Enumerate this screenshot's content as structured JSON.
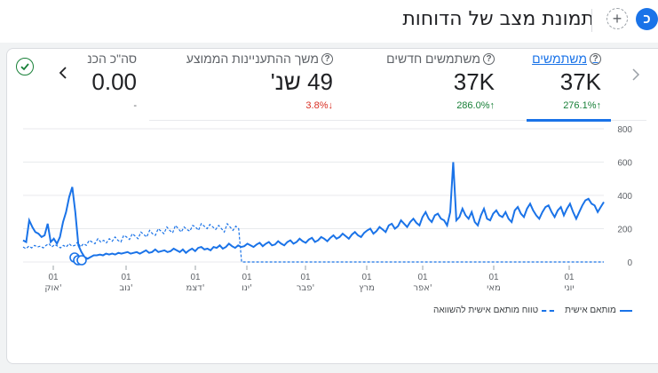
{
  "header": {
    "title": "תמונת מצב של הדוחות",
    "add_label": "+",
    "app_badge": "כ"
  },
  "metrics": [
    {
      "label": "משתמשים",
      "value": "37K",
      "change": "276.1%",
      "direction": "up",
      "active": true
    },
    {
      "label": "משתמשים חדשים",
      "value": "37K",
      "change": "286.0%",
      "direction": "up",
      "active": false
    },
    {
      "label": "משך ההתעניינות הממוצע",
      "value": "49 שנ'",
      "change": "3.8%",
      "direction": "down",
      "active": false
    },
    {
      "label": "סה\"כ הכנ",
      "value": "0.00",
      "change": "-",
      "direction": "none",
      "active": false
    }
  ],
  "nav": {
    "prev": "‹",
    "next": "›"
  },
  "legend": {
    "primary": "מותאם אישית",
    "comparison": "טווח מותאם אישית להשוואה"
  },
  "colors": {
    "accent": "#1a73e8",
    "positive": "#188038",
    "negative": "#d93025"
  },
  "chart_data": {
    "type": "line",
    "y_ticks": [
      "800",
      "600",
      "400",
      "200",
      "0"
    ],
    "ylim": [
      0,
      800
    ],
    "x_ticks": [
      {
        "day": "01",
        "month": "אוק'"
      },
      {
        "day": "01",
        "month": "נוב'"
      },
      {
        "day": "01",
        "month": "דצמ'"
      },
      {
        "day": "01",
        "month": "ינו'"
      },
      {
        "day": "01",
        "month": "פבר'"
      },
      {
        "day": "01",
        "month": "מרץ"
      },
      {
        "day": "01",
        "month": "אפר'"
      },
      {
        "day": "01",
        "month": "מאי"
      },
      {
        "day": "01",
        "month": "יוני"
      }
    ],
    "grid": true,
    "legend_position": "bottom",
    "series": [
      {
        "name": "מותאם אישית",
        "style": "solid",
        "values": [
          130,
          120,
          250,
          210,
          180,
          170,
          150,
          160,
          230,
          120,
          140,
          110,
          150,
          240,
          300,
          390,
          450,
          300,
          100,
          60,
          30,
          20,
          30,
          40,
          40,
          45,
          40,
          50,
          45,
          50,
          45,
          55,
          50,
          55,
          60,
          50,
          55,
          60,
          50,
          60,
          70,
          55,
          60,
          75,
          60,
          65,
          70,
          60,
          65,
          80,
          70,
          60,
          75,
          55,
          70,
          80,
          65,
          85,
          90,
          75,
          80,
          70,
          90,
          85,
          100,
          80,
          90,
          110,
          95,
          85,
          100,
          90,
          95,
          110,
          100,
          90,
          105,
          115,
          95,
          110,
          120,
          100,
          105,
          125,
          110,
          100,
          120,
          130,
          110,
          120,
          140,
          125,
          115,
          135,
          145,
          120,
          130,
          150,
          140,
          125,
          145,
          160,
          140,
          150,
          170,
          155,
          140,
          165,
          180,
          160,
          150,
          175,
          190,
          200,
          170,
          185,
          210,
          195,
          180,
          220,
          230,
          200,
          215,
          250,
          230,
          210,
          240,
          260,
          235,
          220,
          270,
          300,
          260,
          240,
          280,
          290,
          260,
          250,
          220,
          300,
          600,
          250,
          270,
          320,
          280,
          260,
          300,
          240,
          220,
          280,
          320,
          260,
          250,
          290,
          310,
          280,
          270,
          300,
          260,
          240,
          310,
          330,
          290,
          270,
          320,
          350,
          310,
          280,
          260,
          300,
          330,
          340,
          300,
          270,
          310,
          330,
          280,
          320,
          350,
          300,
          260,
          300,
          340,
          370,
          380,
          350,
          340,
          300,
          330,
          360
        ]
      },
      {
        "name": "טווח מותאם אישית להשוואה",
        "style": "dashed",
        "values": [
          90,
          80,
          95,
          85,
          100,
          90,
          95,
          85,
          100,
          110,
          90,
          105,
          95,
          85,
          100,
          90,
          110,
          95,
          100,
          120,
          90,
          110,
          100,
          130,
          120,
          110,
          140,
          120,
          130,
          115,
          140,
          125,
          150,
          130,
          120,
          160,
          150,
          135,
          170,
          155,
          140,
          180,
          165,
          150,
          190,
          170,
          160,
          200,
          185,
          170,
          210,
          190,
          175,
          220,
          200,
          180,
          210,
          195,
          185,
          220,
          210,
          190,
          230,
          215,
          200,
          225,
          210,
          195,
          220,
          200,
          180,
          230,
          210,
          190,
          215,
          200,
          0,
          0,
          0,
          0,
          0,
          0,
          0,
          0,
          0,
          0,
          0,
          0,
          0,
          0,
          0,
          0,
          0,
          0,
          0,
          0,
          0,
          0,
          0,
          0,
          0,
          0,
          0,
          0,
          0,
          0,
          0,
          0,
          0,
          0,
          0,
          0,
          0,
          0,
          0,
          0,
          0,
          0,
          0,
          0,
          0,
          0,
          0,
          0,
          0,
          0,
          0,
          0,
          0,
          0,
          0,
          0,
          0,
          0,
          0,
          0,
          0,
          0,
          0,
          0,
          0,
          0,
          0,
          0,
          0,
          0,
          0,
          0,
          0,
          0,
          0,
          0,
          0,
          0,
          0,
          0,
          0,
          0,
          0,
          0,
          0,
          0,
          0,
          0,
          0,
          0,
          0,
          0,
          0,
          0,
          0,
          0,
          0,
          0,
          0,
          0,
          0,
          0,
          0,
          0,
          0,
          0,
          0,
          0,
          0,
          0,
          0,
          0,
          0,
          0,
          0,
          0,
          0,
          0,
          0,
          0,
          0,
          0,
          0,
          0,
          0,
          0,
          0
        ]
      }
    ]
  }
}
